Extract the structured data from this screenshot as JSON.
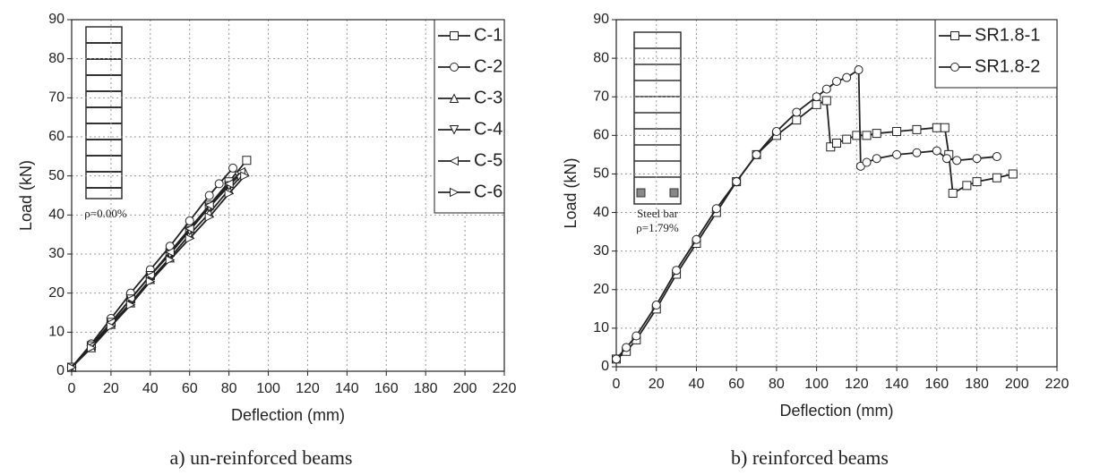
{
  "chart_data": [
    {
      "type": "line",
      "x_label": "Deflection (mm)",
      "y_label": "Load (kN)",
      "caption": "a) un-reinforced beams",
      "annotations": [
        "ρ=0.00%"
      ],
      "xlim": [
        0,
        220
      ],
      "xticks": [
        0,
        20,
        40,
        60,
        80,
        100,
        120,
        140,
        160,
        180,
        200,
        220
      ],
      "ylim": [
        0,
        90
      ],
      "yticks": [
        0,
        10,
        20,
        30,
        40,
        50,
        60,
        70,
        80,
        90
      ],
      "grid": true,
      "legend": "upper right",
      "series": [
        {
          "name": "C-1",
          "color": "#222222",
          "marker": "square",
          "x": [
            0,
            10,
            20,
            30,
            40,
            50,
            60,
            70,
            80,
            89
          ],
          "values": [
            1,
            6.5,
            12.5,
            18.5,
            24.5,
            30.5,
            36.5,
            42.5,
            48.5,
            54
          ]
        },
        {
          "name": "C-2",
          "color": "#222222",
          "marker": "circle",
          "x": [
            0,
            10,
            20,
            30,
            40,
            50,
            60,
            70,
            75,
            82
          ],
          "values": [
            1,
            7,
            13.5,
            20,
            26,
            32,
            38.5,
            45,
            48,
            52
          ]
        },
        {
          "name": "C-3",
          "color": "#222222",
          "marker": "triangle-up",
          "x": [
            0,
            10,
            20,
            30,
            40,
            50,
            60,
            70,
            80,
            88
          ],
          "values": [
            1,
            6,
            12,
            17.5,
            23.5,
            29,
            35,
            40.5,
            46.5,
            51
          ]
        },
        {
          "name": "C-4",
          "color": "#222222",
          "marker": "triangle-down",
          "x": [
            0,
            10,
            20,
            30,
            40,
            50,
            60,
            70,
            80,
            85
          ],
          "values": [
            1,
            6.5,
            12.5,
            18.5,
            24.5,
            30,
            36,
            42,
            47.5,
            50
          ]
        },
        {
          "name": "C-5",
          "color": "#222222",
          "marker": "triangle-left",
          "x": [
            0,
            10,
            20,
            30,
            40,
            50,
            60,
            70,
            80,
            86
          ],
          "values": [
            1,
            6.5,
            12.5,
            18.5,
            24.5,
            30.5,
            36.5,
            42.5,
            48,
            51
          ]
        },
        {
          "name": "C-6",
          "color": "#222222",
          "marker": "triangle-right",
          "x": [
            0,
            10,
            20,
            30,
            40,
            50,
            60,
            70,
            80,
            88
          ],
          "values": [
            1,
            6,
            11.5,
            17,
            23,
            28.5,
            34,
            39.5,
            45.5,
            50
          ]
        }
      ]
    },
    {
      "type": "line",
      "x_label": "Deflection (mm)",
      "y_label": "Load (kN)",
      "caption": "b) reinforced beams",
      "annotations": [
        "Steel bar",
        "ρ=1.79%"
      ],
      "xlim": [
        0,
        220
      ],
      "xticks": [
        0,
        20,
        40,
        60,
        80,
        100,
        120,
        140,
        160,
        180,
        200,
        220
      ],
      "ylim": [
        0,
        90
      ],
      "yticks": [
        0,
        10,
        20,
        30,
        40,
        50,
        60,
        70,
        80,
        90
      ],
      "grid": true,
      "legend": "upper right",
      "series": [
        {
          "name": "SR1.8-1",
          "color": "#222222",
          "marker": "square",
          "x": [
            0,
            5,
            10,
            20,
            30,
            40,
            50,
            60,
            70,
            80,
            90,
            100,
            105,
            107,
            110,
            115,
            120,
            125,
            130,
            140,
            150,
            160,
            164,
            166,
            168,
            175,
            180,
            190,
            198
          ],
          "values": [
            2,
            4,
            7,
            15,
            24,
            32,
            40,
            48,
            55,
            60,
            64,
            68,
            69,
            57,
            58,
            59,
            60,
            60,
            60.5,
            61,
            61.5,
            62,
            62,
            55,
            45,
            47,
            48,
            49,
            50
          ]
        },
        {
          "name": "SR1.8-2",
          "color": "#222222",
          "marker": "circle",
          "x": [
            0,
            5,
            10,
            20,
            30,
            40,
            50,
            60,
            70,
            80,
            90,
            100,
            105,
            110,
            115,
            121,
            122,
            125,
            130,
            140,
            150,
            160,
            165,
            170,
            180,
            190
          ],
          "values": [
            2,
            5,
            8,
            16,
            25,
            33,
            41,
            48,
            55,
            61,
            66,
            70,
            72,
            74,
            75,
            77,
            52,
            53,
            54,
            55,
            55.5,
            56,
            54,
            53.5,
            54,
            54.5
          ]
        }
      ]
    }
  ]
}
